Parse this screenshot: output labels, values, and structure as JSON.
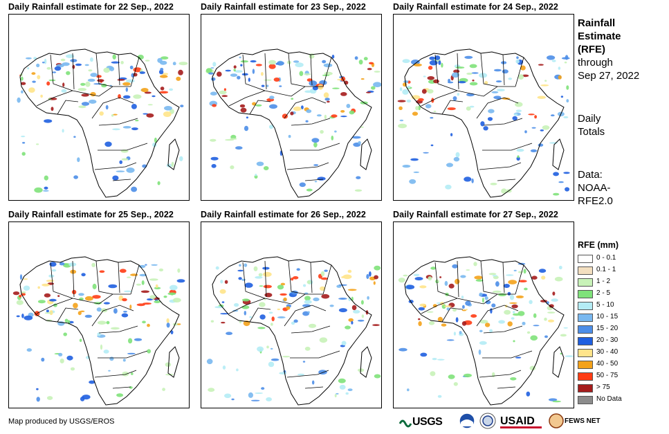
{
  "panels": [
    {
      "title": "Daily Rainfall estimate for 22 Sep., 2022"
    },
    {
      "title": "Daily Rainfall estimate for 23 Sep., 2022"
    },
    {
      "title": "Daily Rainfall estimate for 24 Sep., 2022"
    },
    {
      "title": "Daily Rainfall estimate for 25 Sep., 2022"
    },
    {
      "title": "Daily Rainfall estimate for 26 Sep., 2022"
    },
    {
      "title": "Daily Rainfall estimate for 27 Sep., 2022"
    }
  ],
  "side_info": {
    "title_line1": "Rainfall",
    "title_line2": "Estimate",
    "title_line3": "(RFE)",
    "through_line1": "through",
    "through_line2": "Sep 27, 2022",
    "totals_line1": "Daily",
    "totals_line2": "Totals",
    "data_line1": "Data:",
    "data_line2": "NOAA-",
    "data_line3": "RFE2.0"
  },
  "legend": {
    "title": "RFE (mm)",
    "items": [
      {
        "label": "0 - 0.1",
        "color": "#ffffff"
      },
      {
        "label": "0.1 - 1",
        "color": "#f3dfc0"
      },
      {
        "label": "1 - 2",
        "color": "#c8f2b8"
      },
      {
        "label": "2 - 5",
        "color": "#7fe27a"
      },
      {
        "label": "5 - 10",
        "color": "#b4ecf5"
      },
      {
        "label": "10 - 15",
        "color": "#79b8f0"
      },
      {
        "label": "15 - 20",
        "color": "#4d8ee8"
      },
      {
        "label": "20 - 30",
        "color": "#1f5fe0"
      },
      {
        "label": "30 - 40",
        "color": "#ffe48a"
      },
      {
        "label": "40 - 50",
        "color": "#f4a21a"
      },
      {
        "label": "50 - 75",
        "color": "#ff3c14"
      },
      {
        "label": "> 75",
        "color": "#a51c1c"
      },
      {
        "label": "No Data",
        "color": "#8c8c8c"
      }
    ]
  },
  "credit": "Map produced by USGS/EROS",
  "logos": [
    "USGS",
    "USAID",
    "FEWS NET"
  ]
}
